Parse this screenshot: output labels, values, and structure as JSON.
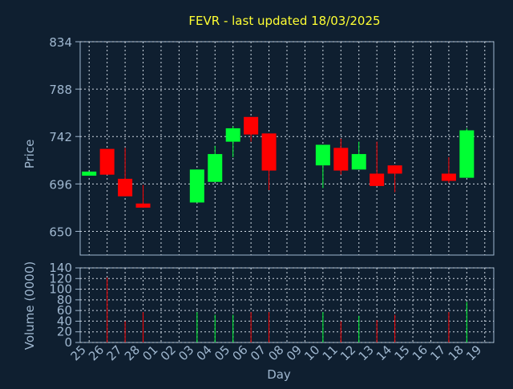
{
  "colors": {
    "background": "#0f1f30",
    "axis": "#9fb7cf",
    "grid": "#cfd8e2",
    "title": "#ffff33",
    "up": "#00ff33",
    "down": "#ff0000"
  },
  "chart_data": [
    {
      "type": "candlestick",
      "title": "FEVR - last updated 18/03/2025",
      "ylabel": "Price",
      "ylim": [
        627,
        834
      ],
      "yticks": [
        650,
        696,
        742,
        788,
        834
      ],
      "grid": true,
      "x": [
        "25",
        "26",
        "27",
        "28",
        "01",
        "02",
        "03",
        "04",
        "05",
        "06",
        "07",
        "08",
        "09",
        "10",
        "11",
        "12",
        "13",
        "14",
        "15",
        "16",
        "17",
        "18",
        "19"
      ],
      "candles": [
        {
          "day": "25",
          "open": 704,
          "close": 708,
          "high": 708,
          "low": 704
        },
        {
          "day": "26",
          "open": 730,
          "close": 705,
          "high": 730,
          "low": 705
        },
        {
          "day": "27",
          "open": 701,
          "close": 684,
          "high": 731,
          "low": 684
        },
        {
          "day": "28",
          "open": 677,
          "close": 673,
          "high": 695,
          "low": 673
        },
        {
          "day": "03",
          "open": 678,
          "close": 710,
          "high": 710,
          "low": 678
        },
        {
          "day": "04",
          "open": 698,
          "close": 725,
          "high": 733,
          "low": 698
        },
        {
          "day": "05",
          "open": 737,
          "close": 750,
          "high": 752,
          "low": 722
        },
        {
          "day": "06",
          "open": 761,
          "close": 744,
          "high": 761,
          "low": 737
        },
        {
          "day": "07",
          "open": 745,
          "close": 709,
          "high": 745,
          "low": 690
        },
        {
          "day": "10",
          "open": 714,
          "close": 734,
          "high": 734,
          "low": 692
        },
        {
          "day": "11",
          "open": 731,
          "close": 709,
          "high": 740,
          "low": 705
        },
        {
          "day": "12",
          "open": 710,
          "close": 725,
          "high": 737,
          "low": 710
        },
        {
          "day": "13",
          "open": 706,
          "close": 694,
          "high": 737,
          "low": 694
        },
        {
          "day": "14",
          "open": 714,
          "close": 706,
          "high": 714,
          "low": 688
        },
        {
          "day": "17",
          "open": 706,
          "close": 699,
          "high": 722,
          "low": 697
        },
        {
          "day": "18",
          "open": 702,
          "close": 748,
          "high": 750,
          "low": 702
        }
      ]
    },
    {
      "type": "bar",
      "ylabel": "Volume (0000)",
      "xlabel": "Day",
      "ylim": [
        0,
        140
      ],
      "yticks": [
        0,
        20,
        40,
        60,
        80,
        100,
        120,
        140
      ],
      "grid": true,
      "categories": [
        "25",
        "26",
        "27",
        "28",
        "01",
        "02",
        "03",
        "04",
        "05",
        "06",
        "07",
        "08",
        "09",
        "10",
        "11",
        "12",
        "13",
        "14",
        "15",
        "16",
        "17",
        "18",
        "19"
      ],
      "bars": [
        {
          "day": "26",
          "value": 122,
          "direction": "down"
        },
        {
          "day": "27",
          "value": 40,
          "direction": "down"
        },
        {
          "day": "28",
          "value": 57,
          "direction": "down"
        },
        {
          "day": "03",
          "value": 57,
          "direction": "up"
        },
        {
          "day": "04",
          "value": 52,
          "direction": "up"
        },
        {
          "day": "05",
          "value": 52,
          "direction": "up"
        },
        {
          "day": "06",
          "value": 57,
          "direction": "down"
        },
        {
          "day": "07",
          "value": 57,
          "direction": "down"
        },
        {
          "day": "10",
          "value": 57,
          "direction": "up"
        },
        {
          "day": "11",
          "value": 40,
          "direction": "down"
        },
        {
          "day": "12",
          "value": 50,
          "direction": "up"
        },
        {
          "day": "13",
          "value": 42,
          "direction": "down"
        },
        {
          "day": "14",
          "value": 52,
          "direction": "down"
        },
        {
          "day": "17",
          "value": 57,
          "direction": "down"
        },
        {
          "day": "18",
          "value": 76,
          "direction": "up"
        }
      ]
    }
  ]
}
